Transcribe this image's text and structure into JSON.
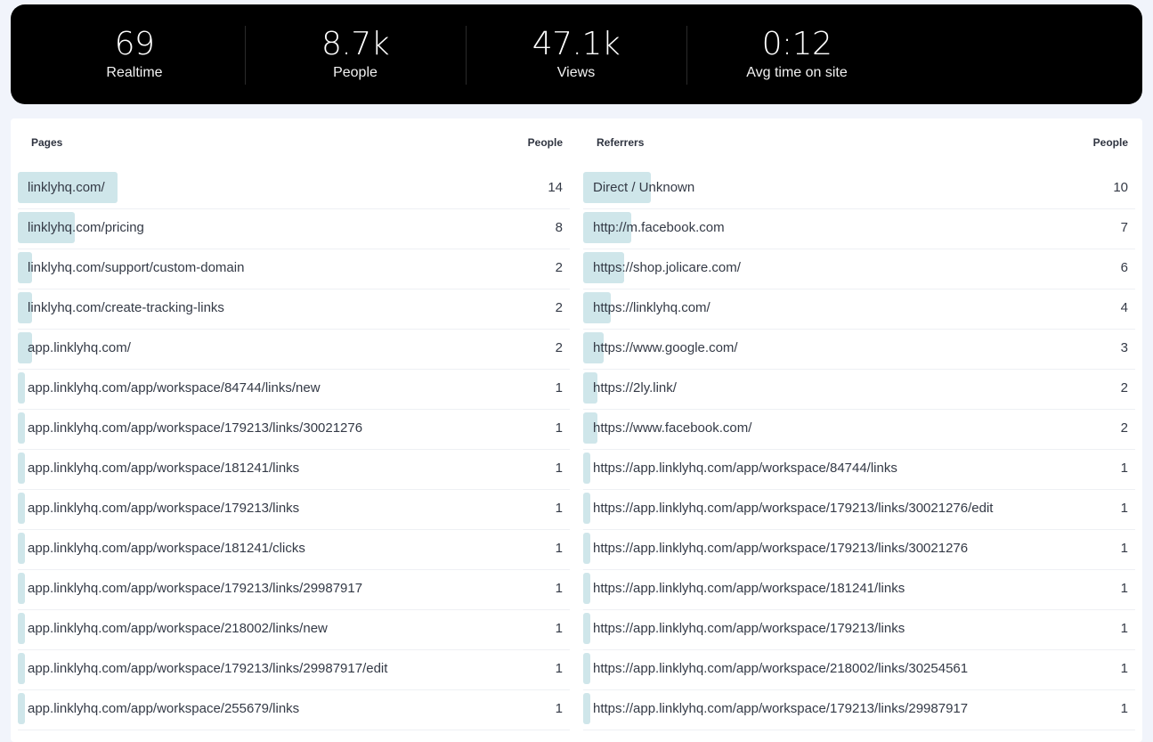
{
  "stats": [
    {
      "value": "69",
      "label": "Realtime"
    },
    {
      "value": "8.7k",
      "label": "People"
    },
    {
      "value": "47.1k",
      "label": "Views"
    },
    {
      "value": "0:12",
      "label": "Avg time on site"
    }
  ],
  "pages": {
    "title": "Pages",
    "value_header": "People",
    "rows": [
      {
        "label": "linklyhq.com/",
        "value": "14",
        "share": 0.181
      },
      {
        "label": "linklyhq.com/pricing",
        "value": "8",
        "share": 0.104
      },
      {
        "label": "linklyhq.com/support/custom-domain",
        "value": "2",
        "share": 0.026
      },
      {
        "label": "linklyhq.com/create-tracking-links",
        "value": "2",
        "share": 0.026
      },
      {
        "label": "app.linklyhq.com/",
        "value": "2",
        "share": 0.026
      },
      {
        "label": "app.linklyhq.com/app/workspace/84744/links/new",
        "value": "1",
        "share": 0.013
      },
      {
        "label": "app.linklyhq.com/app/workspace/179213/links/30021276",
        "value": "1",
        "share": 0.013
      },
      {
        "label": "app.linklyhq.com/app/workspace/181241/links",
        "value": "1",
        "share": 0.013
      },
      {
        "label": "app.linklyhq.com/app/workspace/179213/links",
        "value": "1",
        "share": 0.013
      },
      {
        "label": "app.linklyhq.com/app/workspace/181241/clicks",
        "value": "1",
        "share": 0.013
      },
      {
        "label": "app.linklyhq.com/app/workspace/179213/links/29987917",
        "value": "1",
        "share": 0.013
      },
      {
        "label": "app.linklyhq.com/app/workspace/218002/links/new",
        "value": "1",
        "share": 0.013
      },
      {
        "label": "app.linklyhq.com/app/workspace/179213/links/29987917/edit",
        "value": "1",
        "share": 0.013
      },
      {
        "label": "app.linklyhq.com/app/workspace/255679/links",
        "value": "1",
        "share": 0.013
      }
    ]
  },
  "referrers": {
    "title": "Referrers",
    "value_header": "People",
    "rows": [
      {
        "label": "Direct / Unknown",
        "value": "10",
        "share": 0.123
      },
      {
        "label": "http://m.facebook.com",
        "value": "7",
        "share": 0.087
      },
      {
        "label": "https://shop.jolicare.com/",
        "value": "6",
        "share": 0.074
      },
      {
        "label": "https://linklyhq.com/",
        "value": "4",
        "share": 0.05
      },
      {
        "label": "https://www.google.com/",
        "value": "3",
        "share": 0.037
      },
      {
        "label": "https://2ly.link/",
        "value": "2",
        "share": 0.026
      },
      {
        "label": "https://www.facebook.com/",
        "value": "2",
        "share": 0.026
      },
      {
        "label": "https://app.linklyhq.com/app/workspace/84744/links",
        "value": "1",
        "share": 0.013
      },
      {
        "label": "https://app.linklyhq.com/app/workspace/179213/links/30021276/edit",
        "value": "1",
        "share": 0.013
      },
      {
        "label": "https://app.linklyhq.com/app/workspace/179213/links/30021276",
        "value": "1",
        "share": 0.013
      },
      {
        "label": "https://app.linklyhq.com/app/workspace/181241/links",
        "value": "1",
        "share": 0.013
      },
      {
        "label": "https://app.linklyhq.com/app/workspace/179213/links",
        "value": "1",
        "share": 0.013
      },
      {
        "label": "https://app.linklyhq.com/app/workspace/218002/links/30254561",
        "value": "1",
        "share": 0.013
      },
      {
        "label": "https://app.linklyhq.com/app/workspace/179213/links/29987917",
        "value": "1",
        "share": 0.013
      }
    ]
  },
  "colors": {
    "bar": "#cfe6ea",
    "header_bg": "#000000",
    "page_bg": "#f1f4fb"
  }
}
